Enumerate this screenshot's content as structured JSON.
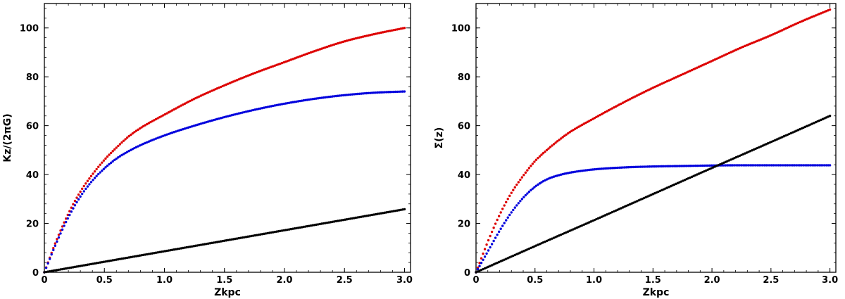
{
  "chart_data": [
    {
      "type": "scatter",
      "xlabel": "Zkpc",
      "ylabel": "Kz/(2πG)",
      "xlim": [
        0,
        3.05
      ],
      "ylim": [
        0,
        110
      ],
      "xticks": [
        "0",
        "0.5",
        "1.0",
        "1.5",
        "2.0",
        "2.5",
        "3.0"
      ],
      "yticks": [
        "0",
        "20",
        "40",
        "60",
        "80",
        "100"
      ],
      "grid": false,
      "series": [
        {
          "color": "#dd0000",
          "x": [
            0,
            0.1,
            0.2,
            0.3,
            0.4,
            0.5,
            0.6,
            0.7,
            0.8,
            1.0,
            1.25,
            1.5,
            1.75,
            2.0,
            2.25,
            2.5,
            2.75,
            3.0
          ],
          "y": [
            0,
            13,
            24,
            33,
            40,
            46,
            51,
            55.5,
            59,
            64.5,
            71,
            76.5,
            81.5,
            86,
            90.5,
            94.5,
            97.5,
            100
          ]
        },
        {
          "color": "#0000dd",
          "x": [
            0,
            0.1,
            0.2,
            0.3,
            0.4,
            0.5,
            0.6,
            0.7,
            0.8,
            1.0,
            1.25,
            1.5,
            1.75,
            2.0,
            2.25,
            2.5,
            2.75,
            3.0
          ],
          "y": [
            0,
            12,
            22.5,
            31,
            37.5,
            42.5,
            46.5,
            49.5,
            52,
            56,
            60,
            63.5,
            66.5,
            69,
            71,
            72.5,
            73.5,
            74
          ]
        },
        {
          "color": "#000000",
          "x": [
            0,
            0.5,
            1.0,
            1.5,
            2.0,
            2.5,
            3.0
          ],
          "y": [
            0,
            4.3,
            8.6,
            12.9,
            17.2,
            21.5,
            25.8
          ]
        }
      ]
    },
    {
      "type": "scatter",
      "xlabel": "Zkpc",
      "ylabel": "Σ(z)",
      "xlim": [
        0,
        3.05
      ],
      "ylim": [
        0,
        110
      ],
      "xticks": [
        "0",
        "0.5",
        "1.0",
        "1.5",
        "2.0",
        "2.5",
        "3.0"
      ],
      "yticks": [
        "0",
        "20",
        "40",
        "60",
        "80",
        "100"
      ],
      "grid": false,
      "series": [
        {
          "color": "#dd0000",
          "x": [
            0,
            0.1,
            0.2,
            0.3,
            0.4,
            0.5,
            0.6,
            0.7,
            0.8,
            1.0,
            1.25,
            1.5,
            1.75,
            2.0,
            2.25,
            2.5,
            2.75,
            3.0
          ],
          "y": [
            0,
            12.5,
            23.5,
            32.5,
            39.5,
            45.5,
            50,
            54,
            57.5,
            63,
            69.5,
            75.5,
            81,
            86.5,
            92,
            97,
            102.5,
            107.5
          ]
        },
        {
          "color": "#0000dd",
          "x": [
            0,
            0.1,
            0.2,
            0.3,
            0.4,
            0.5,
            0.6,
            0.7,
            0.8,
            1.0,
            1.25,
            1.5,
            1.75,
            2.0,
            2.25,
            2.5,
            2.75,
            3.0
          ],
          "y": [
            0,
            8.5,
            17,
            24.5,
            30.5,
            35,
            38,
            39.7,
            40.8,
            42.1,
            42.9,
            43.3,
            43.5,
            43.7,
            43.8,
            43.8,
            43.8,
            43.8
          ]
        },
        {
          "color": "#000000",
          "x": [
            0,
            0.5,
            1.0,
            1.5,
            2.0,
            2.5,
            3.0
          ],
          "y": [
            0,
            10.7,
            21.3,
            32,
            42.7,
            53.3,
            64
          ]
        }
      ]
    }
  ]
}
